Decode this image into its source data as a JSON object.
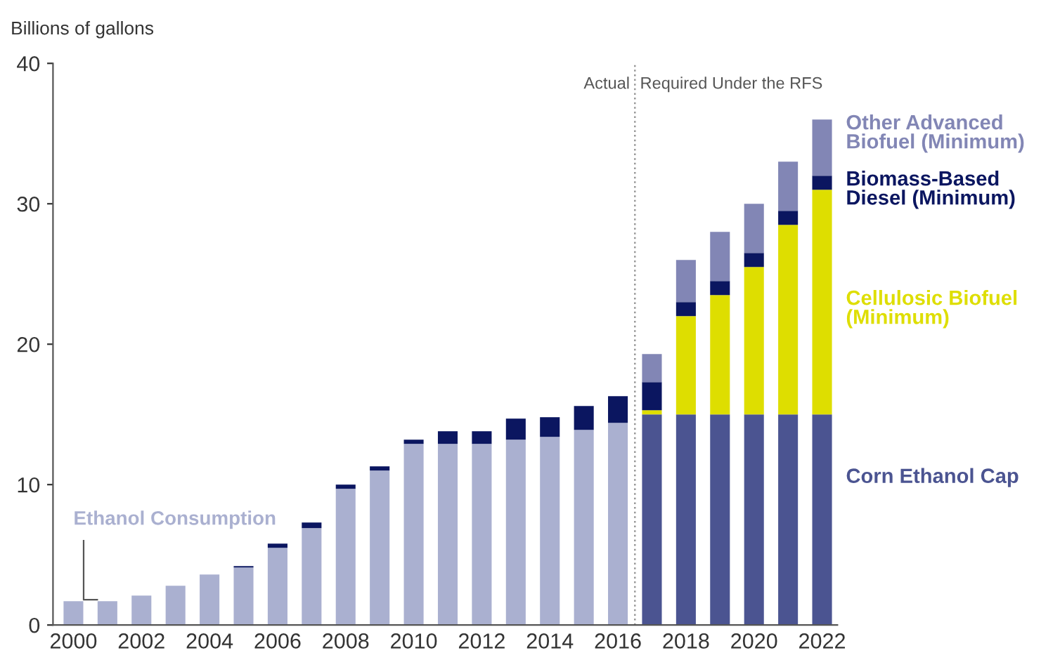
{
  "chart_data": {
    "type": "bar",
    "stacked": true,
    "ylabel": "Billions of gallons",
    "x": [
      2000,
      2001,
      2002,
      2003,
      2004,
      2005,
      2006,
      2007,
      2008,
      2009,
      2010,
      2011,
      2012,
      2013,
      2014,
      2015,
      2016,
      2017,
      2018,
      2019,
      2020,
      2021,
      2022
    ],
    "series": [
      {
        "name": "Ethanol Consumption",
        "color": "#aab0d0",
        "values": [
          1.7,
          1.7,
          2.1,
          2.8,
          3.6,
          4.1,
          5.5,
          6.9,
          9.7,
          11.0,
          12.9,
          12.9,
          12.9,
          13.2,
          13.4,
          13.9,
          14.4,
          null,
          null,
          null,
          null,
          null,
          null
        ]
      },
      {
        "name": "Corn Ethanol Cap",
        "color": "#4b5491",
        "values": [
          null,
          null,
          null,
          null,
          null,
          null,
          null,
          null,
          null,
          null,
          null,
          null,
          null,
          null,
          null,
          null,
          null,
          15,
          15,
          15,
          15,
          15,
          15
        ]
      },
      {
        "name": "Cellulosic Biofuel (Minimum)",
        "color": "#dede00",
        "values": [
          null,
          null,
          null,
          null,
          null,
          null,
          null,
          null,
          null,
          null,
          null,
          null,
          null,
          null,
          null,
          null,
          null,
          0.3,
          7.0,
          8.5,
          10.5,
          13.5,
          16.0
        ]
      },
      {
        "name": "Biomass-Based Diesel (Minimum)",
        "color": "#0b1660",
        "values": [
          null,
          null,
          null,
          null,
          null,
          0.1,
          0.3,
          0.4,
          0.3,
          0.3,
          0.3,
          0.9,
          0.9,
          1.5,
          1.4,
          1.7,
          1.9,
          2.0,
          1.0,
          1.0,
          1.0,
          1.0,
          1.0
        ]
      },
      {
        "name": "Other Advanced Biofuel (Minimum)",
        "color": "#8286b5",
        "values": [
          null,
          null,
          null,
          null,
          null,
          null,
          null,
          null,
          null,
          null,
          null,
          null,
          null,
          null,
          null,
          null,
          null,
          2.0,
          3.0,
          3.5,
          3.5,
          3.5,
          4.0
        ]
      }
    ],
    "xlim": [
      1999.4,
      2022.45
    ],
    "xticks": [
      2000,
      2002,
      2004,
      2006,
      2008,
      2010,
      2012,
      2014,
      2016,
      2018,
      2020,
      2022
    ],
    "ylim": [
      0,
      40
    ],
    "yticks": [
      0,
      10,
      20,
      30,
      40
    ],
    "grid": false,
    "legend": false,
    "ref_lines": [
      {
        "axis": "x",
        "value": 2016.5,
        "color": "#999999",
        "line_style": "dotted"
      }
    ],
    "annotations": [
      {
        "text": "Actual",
        "x": 2016.5,
        "y": 38.5
      },
      {
        "text": "Required Under the RFS",
        "x": 2016.5,
        "y": 38.5
      }
    ]
  }
}
